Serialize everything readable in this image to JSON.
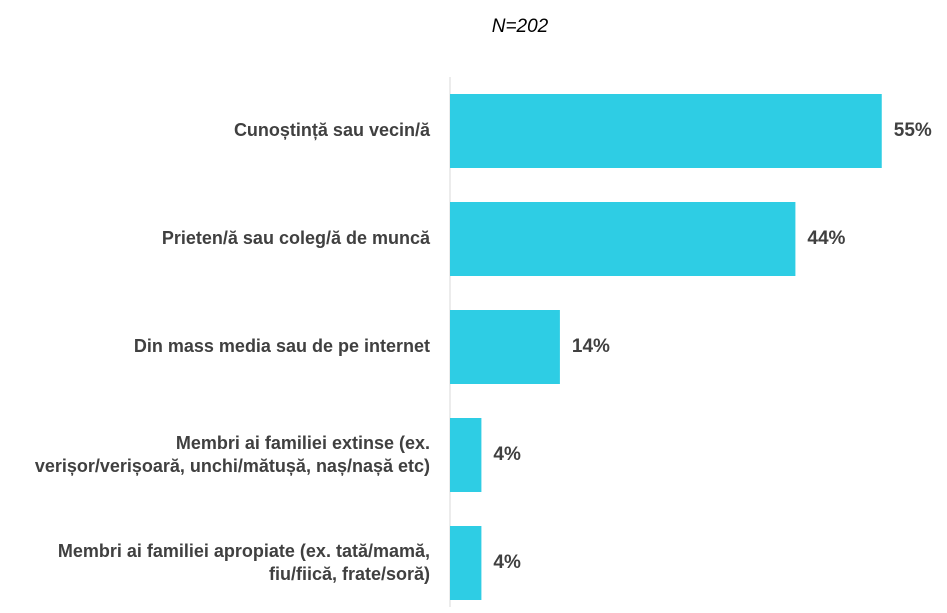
{
  "chart_data": {
    "type": "bar",
    "orientation": "horizontal",
    "title": "N=202",
    "categories": [
      "Cunoștință sau vecin/ă",
      "Prieten/ă sau coleg/ă de muncă",
      "Din mass media sau de pe internet",
      "Membri ai familiei extinse (ex. verișor/verișoară, unchi/mătușă, naș/nașă etc)",
      "Membri ai familiei apropiate (ex. tată/mamă, fiu/fiică, frate/soră)"
    ],
    "values": [
      55,
      44,
      14,
      4,
      4
    ],
    "value_labels": [
      "55%",
      "44%",
      "14%",
      "4%",
      "4%"
    ],
    "color": "#2ecde4",
    "xlim": [
      0,
      60
    ]
  }
}
